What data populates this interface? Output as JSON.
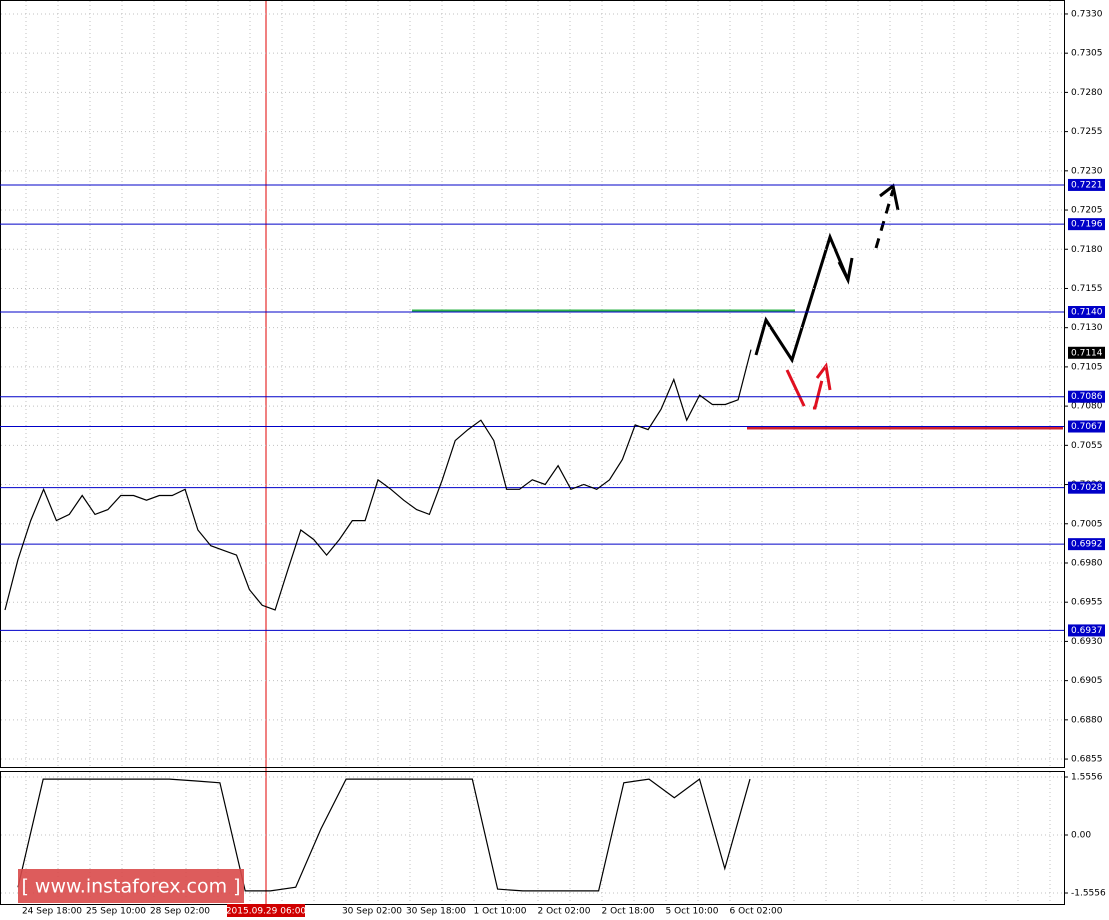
{
  "chart_data": [
    {
      "type": "line",
      "color": "#000000",
      "values": [
        0.695,
        0.6982,
        0.7007,
        0.7027,
        0.7007,
        0.7011,
        0.7023,
        0.7011,
        0.7014,
        0.7023,
        0.7023,
        0.702,
        0.7023,
        0.7023,
        0.7027,
        0.7001,
        0.6991,
        0.6988,
        0.6985,
        0.6963,
        0.6953,
        0.695,
        0.6976,
        0.7001,
        0.6995,
        0.6985,
        0.6995,
        0.7007,
        0.7007,
        0.7033,
        0.7027,
        0.702,
        0.7014,
        0.7011,
        0.7033,
        0.7058,
        0.7065,
        0.7071,
        0.7058,
        0.7027,
        0.7027,
        0.7033,
        0.703,
        0.7042,
        0.7027,
        0.703,
        0.7027,
        0.7033,
        0.7046,
        0.7068,
        0.7065,
        0.7078,
        0.7097,
        0.7071,
        0.7087,
        0.7081,
        0.7081,
        0.7084,
        0.7116
      ],
      "ylim": [
        0.68493,
        0.73389
      ],
      "yticks": [
        {
          "value": 0.733,
          "label": "0.7330"
        },
        {
          "value": 0.7305,
          "label": "0.7305"
        },
        {
          "value": 0.728,
          "label": "0.7280"
        },
        {
          "value": 0.7255,
          "label": "0.7255"
        },
        {
          "value": 0.723,
          "label": "0.7230"
        },
        {
          "value": 0.7205,
          "label": "0.7205"
        },
        {
          "value": 0.718,
          "label": "0.7180"
        },
        {
          "value": 0.7155,
          "label": "0.7155"
        },
        {
          "value": 0.713,
          "label": "0.7130"
        },
        {
          "value": 0.7105,
          "label": "0.7105"
        },
        {
          "value": 0.708,
          "label": "0.7080"
        },
        {
          "value": 0.7055,
          "label": "0.7055"
        },
        {
          "value": 0.703,
          "label": "0.7030"
        },
        {
          "value": 0.7005,
          "label": "0.7005"
        },
        {
          "value": 0.698,
          "label": "0.6980"
        },
        {
          "value": 0.6955,
          "label": "0.6955"
        },
        {
          "value": 0.693,
          "label": "0.6930"
        },
        {
          "value": 0.6905,
          "label": "0.6905"
        },
        {
          "value": 0.688,
          "label": "0.6880"
        },
        {
          "value": 0.6855,
          "label": "0.6855"
        }
      ],
      "levels": {
        "values": [
          0.7221,
          0.7196,
          0.714,
          0.7086,
          0.7067,
          0.7028,
          0.6992,
          0.6937
        ],
        "value_labels": [
          "0.7221",
          "0.7196",
          "0.7140",
          "0.7086",
          "0.7067",
          "0.7028",
          "0.6992",
          "0.6937"
        ]
      },
      "current_price": {
        "value": 0.7114,
        "label": "0.7114"
      },
      "time_labels": [
        "2:00",
        "24 Sep 18:00",
        "25 Sep 10:00",
        "28 Sep 02:00",
        "30 Sep 02:00",
        "30 Sep 18:00",
        "1 Oct 10:00",
        "2 Oct 02:00",
        "2 Oct 18:00",
        "5 Oct 10:00",
        "6 Oct 02:00"
      ],
      "cursor_time_label": "2015.09.29 06:00",
      "watermark": "[ www.instaforex.com ]"
    },
    {
      "type": "line",
      "color": "#000000",
      "values": [
        -1.4,
        1.5,
        1.5,
        1.5,
        1.5,
        1.5,
        1.5,
        1.45,
        1.4,
        -1.5,
        -1.5,
        -1.4,
        0.16,
        1.5,
        1.5,
        1.5,
        1.5,
        1.5,
        1.5,
        -1.45,
        -1.5,
        -1.5,
        -1.5,
        -1.5,
        1.4,
        1.5,
        1.0,
        1.5,
        -0.9,
        1.5
      ],
      "ylim": [
        -1.8775,
        1.7166
      ],
      "yticks": [
        1.5556,
        {
          "value": 0,
          "label": "0.00"
        },
        -1.5556
      ]
    }
  ]
}
